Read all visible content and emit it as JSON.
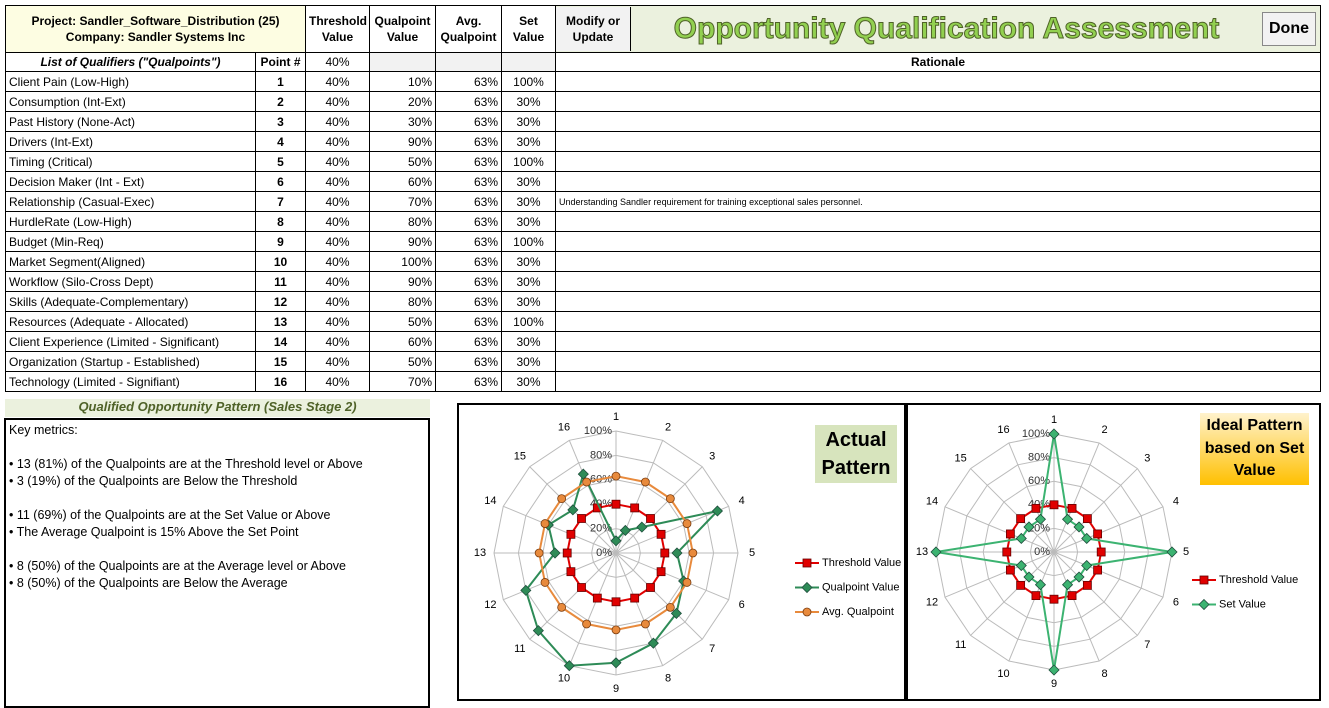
{
  "header": {
    "project": "Project: Sandler_Software_Distribution (25)",
    "company": "Company: Sandler Systems Inc",
    "columns": [
      "Threshold Value",
      "Qualpoint Value",
      "Avg. Qualpoint",
      "Set Value"
    ],
    "button": "Modify or Update",
    "title": "Opportunity Qualification Assessment",
    "done": "Done"
  },
  "table": {
    "columns": [
      "List of Qualifiers (\"Qualpoints\")",
      "Point #"
    ],
    "threshold": "40%",
    "rationale_header": "Rationale",
    "rows": [
      {
        "qualifier": "Client Pain (Low-High)",
        "point": "1",
        "threshold": "40%",
        "qualpoint": "10%",
        "avg": "63%",
        "set": "100%"
      },
      {
        "qualifier": "Consumption (Int-Ext)",
        "point": "2",
        "threshold": "40%",
        "qualpoint": "20%",
        "avg": "63%",
        "set": "30%"
      },
      {
        "qualifier": "Past History (None-Act)",
        "point": "3",
        "threshold": "40%",
        "qualpoint": "30%",
        "avg": "63%",
        "set": "30%"
      },
      {
        "qualifier": "Drivers (Int-Ext)",
        "point": "4",
        "threshold": "40%",
        "qualpoint": "90%",
        "avg": "63%",
        "set": "30%"
      },
      {
        "qualifier": "Timing (Critical)",
        "point": "5",
        "threshold": "40%",
        "qualpoint": "50%",
        "avg": "63%",
        "set": "100%"
      },
      {
        "qualifier": "Decision Maker (Int - Ext)",
        "point": "6",
        "threshold": "40%",
        "qualpoint": "60%",
        "avg": "63%",
        "set": "30%"
      },
      {
        "qualifier": "Relationship (Casual-Exec)",
        "point": "7",
        "threshold": "40%",
        "qualpoint": "70%",
        "avg": "63%",
        "set": "30%",
        "rationale": "Understanding Sandler requirement for training exceptional sales personnel."
      },
      {
        "qualifier": "HurdleRate (Low-High)",
        "point": "8",
        "threshold": "40%",
        "qualpoint": "80%",
        "avg": "63%",
        "set": "30%"
      },
      {
        "qualifier": "Budget (Min-Req)",
        "point": "9",
        "threshold": "40%",
        "qualpoint": "90%",
        "avg": "63%",
        "set": "100%"
      },
      {
        "qualifier": "Market Segment(Aligned)",
        "point": "10",
        "threshold": "40%",
        "qualpoint": "100%",
        "avg": "63%",
        "set": "30%"
      },
      {
        "qualifier": "Workflow (Silo-Cross Dept)",
        "point": "11",
        "threshold": "40%",
        "qualpoint": "90%",
        "avg": "63%",
        "set": "30%"
      },
      {
        "qualifier": "Skills (Adequate-Complementary)",
        "point": "12",
        "threshold": "40%",
        "qualpoint": "80%",
        "avg": "63%",
        "set": "30%"
      },
      {
        "qualifier": "Resources (Adequate - Allocated)",
        "point": "13",
        "threshold": "40%",
        "qualpoint": "50%",
        "avg": "63%",
        "set": "100%"
      },
      {
        "qualifier": "Client Experience (Limited - Significant)",
        "point": "14",
        "threshold": "40%",
        "qualpoint": "60%",
        "avg": "63%",
        "set": "30%"
      },
      {
        "qualifier": "Organization (Startup - Established)",
        "point": "15",
        "threshold": "40%",
        "qualpoint": "50%",
        "avg": "63%",
        "set": "30%"
      },
      {
        "qualifier": "Technology (Limited - Signifiant)",
        "point": "16",
        "threshold": "40%",
        "qualpoint": "70%",
        "avg": "63%",
        "set": "30%"
      }
    ]
  },
  "panel": {
    "title": "Qualified Opportunity Pattern (Sales Stage 2)",
    "label": "Key metrics:",
    "groups": [
      [
        "• 13 (81%) of the Qualpoints are at the Threshold level or Above",
        "• 3 (19%) of the Qualpoints are Below the Threshold"
      ],
      [
        "• 11 (69%) of the Qualpoints are at the Set Value or Above",
        "• The Average Qualpoint is 15% Above the Set Point"
      ],
      [
        "• 8 (50%) of the Qualpoints are at the Average level or Above",
        "• 8 (50%) of the Qualpoints are Below the Average"
      ]
    ]
  },
  "chart_data": [
    {
      "type": "radar",
      "title": "Actual Pattern",
      "categories": [
        "1",
        "2",
        "3",
        "4",
        "5",
        "6",
        "7",
        "8",
        "9",
        "10",
        "11",
        "12",
        "13",
        "14",
        "15",
        "16"
      ],
      "ylim": [
        0,
        100
      ],
      "yticks": [
        {
          "value": 0,
          "label": "0%"
        },
        {
          "value": 20,
          "label": "20%"
        },
        {
          "value": 40,
          "label": "40%"
        },
        {
          "value": 60,
          "label": "60%"
        },
        {
          "value": 80,
          "label": "80%"
        },
        {
          "value": 100,
          "label": "100%"
        }
      ],
      "legend": "right",
      "series": [
        {
          "name": "Threshold Value",
          "color": "#e00000",
          "marker": "square",
          "values": [
            40,
            40,
            40,
            40,
            40,
            40,
            40,
            40,
            40,
            40,
            40,
            40,
            40,
            40,
            40,
            40
          ]
        },
        {
          "name": "Qualpoint Value",
          "color": "#2e8b57",
          "marker": "diamond",
          "values": [
            10,
            20,
            30,
            90,
            50,
            60,
            70,
            80,
            90,
            100,
            90,
            80,
            50,
            60,
            50,
            70
          ]
        },
        {
          "name": "Avg. Qualpoint",
          "color": "#e88a3c",
          "marker": "circle",
          "values": [
            63,
            63,
            63,
            63,
            63,
            63,
            63,
            63,
            63,
            63,
            63,
            63,
            63,
            63,
            63,
            63
          ]
        }
      ]
    },
    {
      "type": "radar",
      "title": "Ideal Pattern based on Set Value",
      "categories": [
        "1",
        "2",
        "3",
        "4",
        "5",
        "6",
        "7",
        "8",
        "9",
        "10",
        "11",
        "12",
        "13",
        "14",
        "15",
        "16"
      ],
      "ylim": [
        0,
        100
      ],
      "yticks": [
        {
          "value": 0,
          "label": "0%"
        },
        {
          "value": 20,
          "label": "20%"
        },
        {
          "value": 40,
          "label": "40%"
        },
        {
          "value": 60,
          "label": "60%"
        },
        {
          "value": 80,
          "label": "80%"
        },
        {
          "value": 100,
          "label": "100%"
        }
      ],
      "legend": "right",
      "series": [
        {
          "name": "Threshold Value",
          "color": "#e00000",
          "marker": "square",
          "values": [
            40,
            40,
            40,
            40,
            40,
            40,
            40,
            40,
            40,
            40,
            40,
            40,
            40,
            40,
            40,
            40
          ]
        },
        {
          "name": "Set Value",
          "color": "#3cb371",
          "marker": "diamond",
          "values": [
            100,
            30,
            30,
            30,
            100,
            30,
            30,
            30,
            100,
            30,
            30,
            30,
            100,
            30,
            30,
            30
          ]
        }
      ]
    }
  ]
}
